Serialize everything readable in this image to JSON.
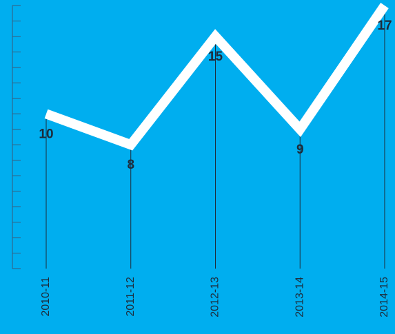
{
  "chart_data": {
    "type": "line",
    "categories": [
      "2010-11",
      "2011-12",
      "2012-13",
      "2013-14",
      "2014-15"
    ],
    "values": [
      10,
      8,
      15,
      9,
      17
    ],
    "color": "#ffffff",
    "ylim": [
      0,
      17
    ],
    "yticks": [
      0,
      1,
      2,
      3,
      4,
      5,
      6,
      7,
      8,
      9,
      10,
      11,
      12,
      13,
      14,
      15,
      16,
      17
    ]
  }
}
